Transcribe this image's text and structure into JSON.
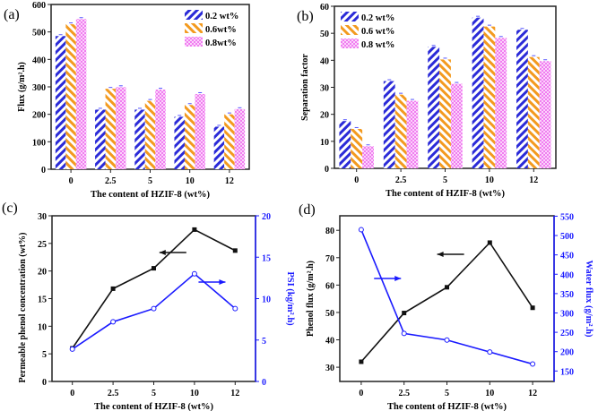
{
  "chart_data": [
    {
      "panel": "(a)",
      "type": "bar",
      "categories": [
        "0",
        "2.5",
        "5",
        "10",
        "12"
      ],
      "xlabel": "The content of HZIF-8 (wt%)",
      "ylabel": "Flux (g/m².h)",
      "ylim": [
        0,
        600
      ],
      "yticks": [
        0,
        100,
        200,
        300,
        400,
        500,
        600
      ],
      "legend": "top-right",
      "series": [
        {
          "name": "0.2 wt%",
          "color": "#2b2bd8",
          "pattern": "hatch-right",
          "values": [
            485,
            217,
            217,
            191,
            155
          ]
        },
        {
          "name": "0.6wt%",
          "color": "#f39a1f",
          "pattern": "hatch-left",
          "values": [
            528,
            293,
            249,
            234,
            200
          ]
        },
        {
          "name": "0.8wt%",
          "color": "#f07ef0",
          "pattern": "checker",
          "values": [
            547,
            299,
            290,
            274,
            219
          ]
        }
      ]
    },
    {
      "panel": "(b)",
      "type": "bar",
      "categories": [
        "0",
        "2.5",
        "5",
        "10",
        "12"
      ],
      "xlabel": "The content of HZIF-8 (wt%)",
      "ylabel": "Separation factor",
      "ylim": [
        0,
        60
      ],
      "yticks": [
        0,
        10,
        20,
        30,
        40,
        50,
        60
      ],
      "legend": "top-left",
      "series": [
        {
          "name": "0.2 wt%",
          "color": "#2b2bd8",
          "pattern": "hatch-right",
          "values": [
            17.5,
            32.3,
            45,
            55.8,
            51.3
          ]
        },
        {
          "name": "0.6 wt%",
          "color": "#f39a1f",
          "pattern": "hatch-left",
          "values": [
            14.6,
            27.3,
            40.3,
            52.5,
            41.2
          ]
        },
        {
          "name": "0.8 wt%",
          "color": "#f07ef0",
          "pattern": "checker",
          "values": [
            8.2,
            25,
            31.3,
            48.3,
            39.7
          ]
        }
      ]
    },
    {
      "panel": "(c)",
      "type": "line",
      "categories": [
        "0",
        "2.5",
        "5",
        "10",
        "12"
      ],
      "xlabel": "The content of HZIF-8 (wt%)",
      "ylabel": "Permeable phenol concentration (wt%)",
      "ylabel_right": "PSI (kg/m².h)",
      "ylim": [
        0,
        30
      ],
      "yticks": [
        0,
        5,
        10,
        15,
        20,
        25,
        30
      ],
      "ylim_right": [
        0,
        20
      ],
      "yticks_right": [
        0,
        5,
        10,
        15,
        20
      ],
      "series": [
        {
          "axis": "left",
          "color": "#111111",
          "marker": "filled-square",
          "values": [
            6,
            16.8,
            20.5,
            27.5,
            23.7
          ]
        },
        {
          "axis": "right",
          "color": "#1a1aff",
          "marker": "open-circle",
          "values": [
            3.9,
            7.2,
            8.8,
            13,
            8.8
          ]
        }
      ]
    },
    {
      "panel": "(d)",
      "type": "line",
      "categories": [
        "0",
        "2.5",
        "5",
        "10",
        "12"
      ],
      "xlabel": "The content of HZIF-8 (wt%)",
      "ylabel": "Phenol flux (g/m².h)",
      "ylabel_right": "Water flux (g/m².h)",
      "ylim": [
        24.8,
        85.3
      ],
      "yticks": [
        30,
        40,
        50,
        60,
        70,
        80
      ],
      "ylim_right": [
        123,
        551
      ],
      "yticks_right": [
        150,
        200,
        250,
        300,
        350,
        400,
        450,
        500,
        550
      ],
      "series": [
        {
          "axis": "left",
          "color": "#111111",
          "marker": "filled-square",
          "values": [
            32,
            49.8,
            59.2,
            75.5,
            51.7
          ]
        },
        {
          "axis": "right",
          "color": "#1a1aff",
          "marker": "open-circle",
          "values": [
            515,
            247,
            230,
            199,
            168
          ]
        }
      ]
    }
  ]
}
